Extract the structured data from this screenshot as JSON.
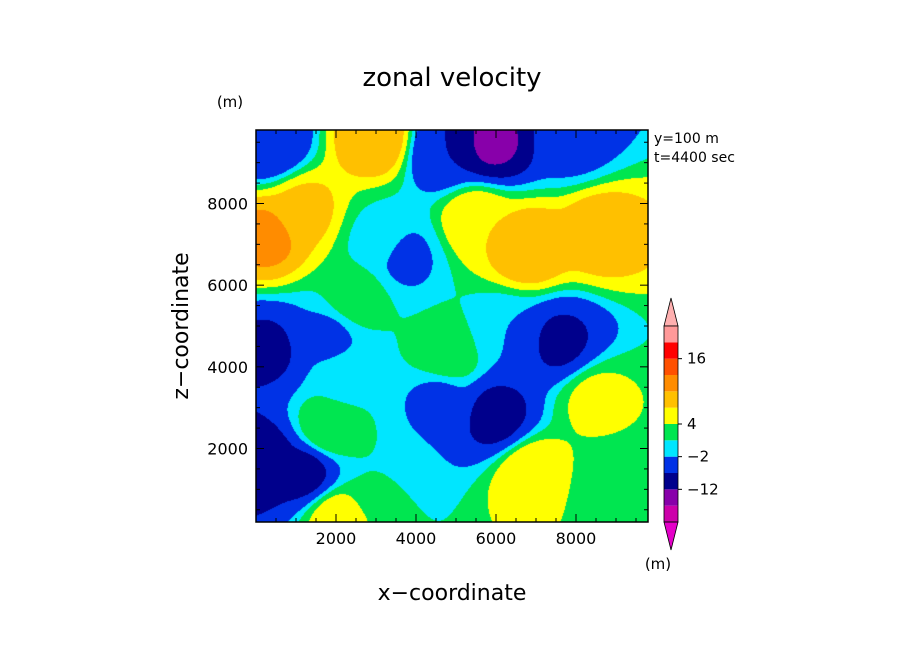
{
  "chart_data": {
    "type": "heatmap",
    "title": "zonal velocity",
    "xlabel": "x−coordinate",
    "ylabel": "z−coordinate",
    "y_unit": "(m)",
    "colorbar_unit": "(m)",
    "annotations": [
      "y=100 m",
      "t=4400 sec"
    ],
    "xlim": [
      0,
      9800
    ],
    "ylim": [
      200,
      9800
    ],
    "x_ticks": [
      2000,
      4000,
      6000,
      8000
    ],
    "y_ticks": [
      2000,
      4000,
      6000,
      8000
    ],
    "x_tick_labels": [
      "2000",
      "4000",
      "6000",
      "8000"
    ],
    "y_tick_labels": [
      "2000",
      "4000",
      "6000",
      "8000"
    ],
    "levels": [
      -22,
      -17,
      -12,
      -7,
      -2,
      1,
      4,
      7,
      10,
      13,
      16,
      19
    ],
    "level_colors": [
      "#cc00aa",
      "#8800aa",
      "#00008c",
      "#0032e6",
      "#00e6ff",
      "#00e650",
      "#ffff00",
      "#ffc000",
      "#ff8c00",
      "#ff5000",
      "#ff0000",
      "#ff9999"
    ],
    "under_color": "#e400c8",
    "over_color": "#ffb0b0",
    "colorbar_labels": [
      "16",
      "4",
      "−2",
      "−12"
    ],
    "colorbar_label_values": [
      16,
      4,
      -2,
      -12
    ],
    "field_centers": [
      {
        "x": 5900,
        "z": 9500,
        "u": -13
      },
      {
        "x": 4700,
        "z": 9300,
        "u": -7
      },
      {
        "x": 7900,
        "z": 9600,
        "u": -4
      },
      {
        "x": 300,
        "z": 9500,
        "u": -7
      },
      {
        "x": 1200,
        "z": 7800,
        "u": 8
      },
      {
        "x": 300,
        "z": 7200,
        "u": 11
      },
      {
        "x": 3000,
        "z": 9600,
        "u": 10
      },
      {
        "x": 3700,
        "z": 6700,
        "u": -3
      },
      {
        "x": 3100,
        "z": 7100,
        "u": 0
      },
      {
        "x": 6800,
        "z": 6900,
        "u": 10
      },
      {
        "x": 8600,
        "z": 7300,
        "u": 9
      },
      {
        "x": 5500,
        "z": 7600,
        "u": 7
      },
      {
        "x": 2500,
        "z": 5700,
        "u": 3
      },
      {
        "x": 1800,
        "z": 4700,
        "u": -3
      },
      {
        "x": 300,
        "z": 4400,
        "u": -8
      },
      {
        "x": 7600,
        "z": 4600,
        "u": -8
      },
      {
        "x": 6200,
        "z": 4800,
        "u": -2
      },
      {
        "x": 4800,
        "z": 4300,
        "u": 4
      },
      {
        "x": 2200,
        "z": 3700,
        "u": 0
      },
      {
        "x": 6000,
        "z": 2800,
        "u": -9
      },
      {
        "x": 4600,
        "z": 3200,
        "u": -3
      },
      {
        "x": 8500,
        "z": 3200,
        "u": 5
      },
      {
        "x": 1800,
        "z": 2500,
        "u": 4
      },
      {
        "x": 1200,
        "z": 1400,
        "u": -9
      },
      {
        "x": 200,
        "z": 1700,
        "u": -10
      },
      {
        "x": 6900,
        "z": 1400,
        "u": 7
      },
      {
        "x": 3200,
        "z": 1100,
        "u": 1
      },
      {
        "x": 8900,
        "z": 1000,
        "u": 1
      },
      {
        "x": 2000,
        "z": 300,
        "u": 6
      },
      {
        "x": 8200,
        "z": 400,
        "u": 4
      }
    ]
  }
}
